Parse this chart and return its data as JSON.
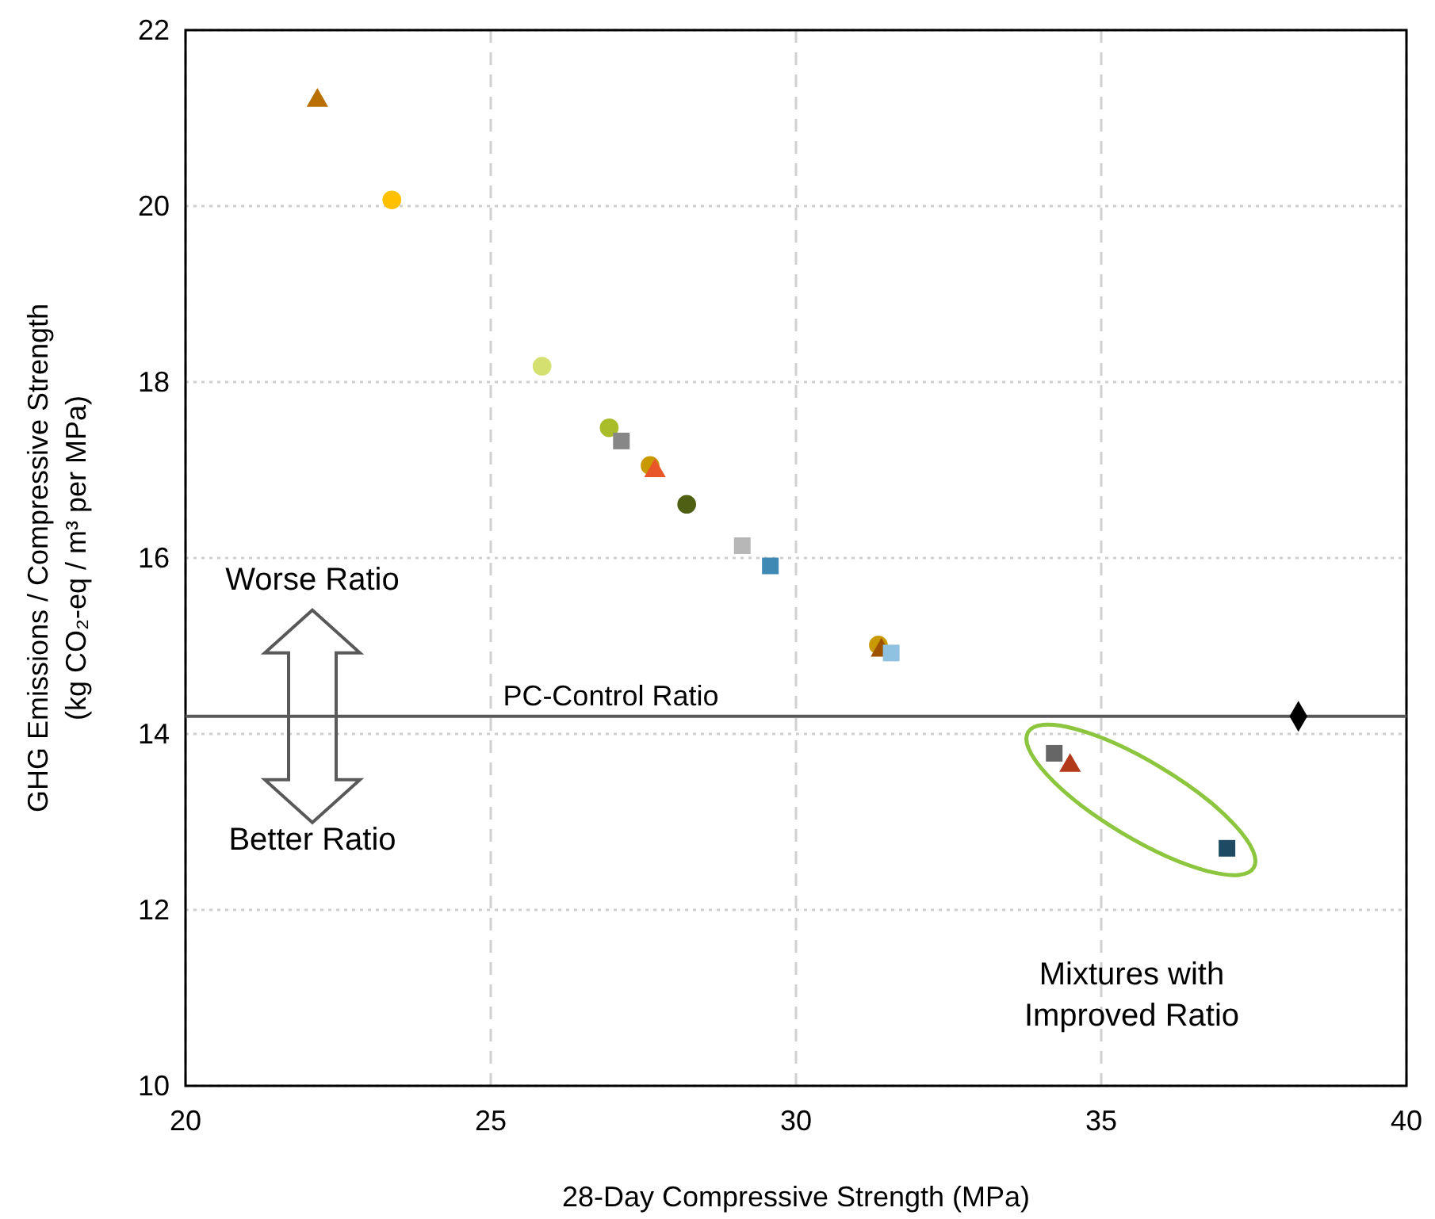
{
  "chart_data": {
    "type": "scatter",
    "xlabel": "28-Day Compressive Strength (MPa)",
    "ylabel": "GHG Emissions / Compressive Strength\n(kg CO₂-eq / m³ per MPa)",
    "xlim": [
      20,
      40
    ],
    "xticks": [
      20,
      25,
      30,
      35,
      40
    ],
    "ylim": [
      10,
      22
    ],
    "yticks": [
      10,
      12,
      14,
      16,
      18,
      20,
      22
    ],
    "grid": true,
    "ref_lines": [
      {
        "axis": "y",
        "value": 14.2,
        "label": "PC-Control Ratio",
        "color": "#595959"
      }
    ],
    "annotations": [
      "Worse Ratio",
      "Better Ratio",
      "Mixtures with Improved Ratio"
    ],
    "series": [
      {
        "marker": "triangle",
        "color": "#b86f00",
        "x": [
          22.16
        ],
        "values": [
          21.2
        ]
      },
      {
        "marker": "circle",
        "color": "#ffc000",
        "x": [
          23.38
        ],
        "values": [
          20.07
        ]
      },
      {
        "marker": "circle",
        "color": "#d4e06f",
        "x": [
          25.84
        ],
        "values": [
          18.18
        ]
      },
      {
        "marker": "circle",
        "color": "#a9bc2a",
        "x": [
          26.94
        ],
        "values": [
          17.48
        ]
      },
      {
        "marker": "square",
        "color": "#878787",
        "x": [
          27.14
        ],
        "values": [
          17.33
        ]
      },
      {
        "marker": "circle",
        "color": "#c99a00",
        "x": [
          27.61
        ],
        "values": [
          17.05
        ]
      },
      {
        "marker": "triangle",
        "color": "#e9562a",
        "x": [
          27.69
        ],
        "values": [
          16.99
        ]
      },
      {
        "marker": "circle",
        "color": "#4f6014",
        "x": [
          28.21
        ],
        "values": [
          16.61
        ]
      },
      {
        "marker": "square",
        "color": "#b7b7b7",
        "x": [
          29.12
        ],
        "values": [
          16.14
        ]
      },
      {
        "marker": "square",
        "color": "#3f8ab5",
        "x": [
          29.58
        ],
        "values": [
          15.91
        ]
      },
      {
        "marker": "circle",
        "color": "#c99a00",
        "x": [
          31.35
        ],
        "values": [
          15.01
        ]
      },
      {
        "marker": "triangle",
        "color": "#9e5200",
        "x": [
          31.4
        ],
        "values": [
          14.95
        ]
      },
      {
        "marker": "square",
        "color": "#8fc1e0",
        "x": [
          31.56
        ],
        "values": [
          14.92
        ]
      },
      {
        "marker": "diamond",
        "color": "#000000",
        "x": [
          38.23
        ],
        "values": [
          14.2
        ]
      },
      {
        "marker": "square",
        "color": "#666666",
        "x": [
          34.23
        ],
        "values": [
          13.78
        ]
      },
      {
        "marker": "triangle",
        "color": "#b23a1a",
        "x": [
          34.49
        ],
        "values": [
          13.64
        ]
      },
      {
        "marker": "square",
        "color": "#1f4a63",
        "x": [
          37.06
        ],
        "values": [
          12.7
        ]
      }
    ]
  }
}
